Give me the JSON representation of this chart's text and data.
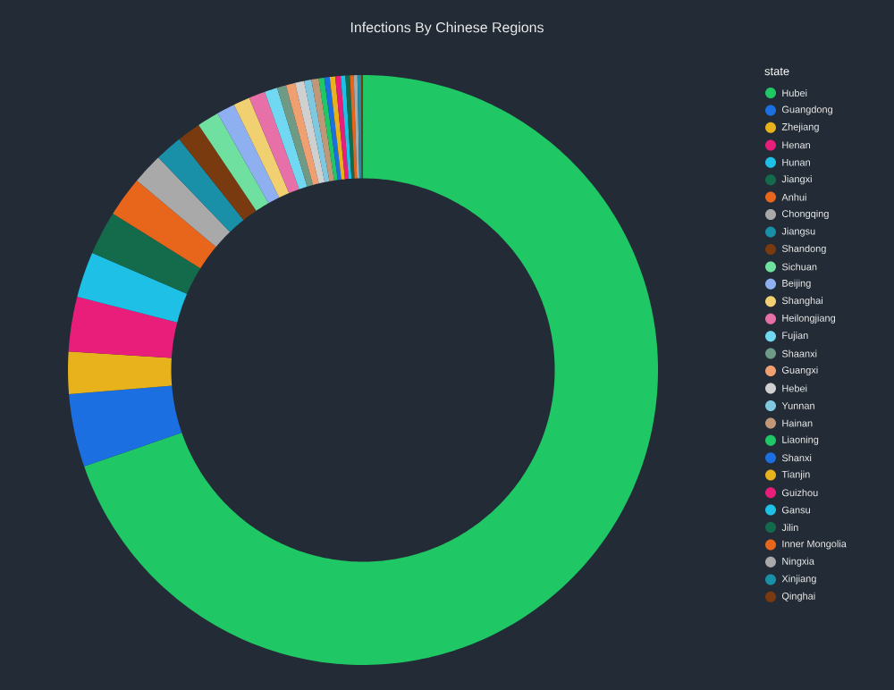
{
  "chart_data": {
    "type": "donut",
    "title": "Infections By Chinese Regions",
    "legend_title": "state",
    "legend": "right",
    "categories": [
      "Hubei",
      "Guangdong",
      "Zhejiang",
      "Henan",
      "Hunan",
      "Jiangxi",
      "Anhui",
      "Chongqing",
      "Jiangsu",
      "Shandong",
      "Sichuan",
      "Beijing",
      "Shanghai",
      "Heilongjiang",
      "Fujian",
      "Shaanxi",
      "Guangxi",
      "Hebei",
      "Yunnan",
      "Hainan",
      "Liaoning",
      "Shanxi",
      "Tianjin",
      "Guizhou",
      "Gansu",
      "Jilin",
      "Inner Mongolia",
      "Ningxia",
      "Xinjiang",
      "Qinghai"
    ],
    "values": [
      69.7,
      4.0,
      2.3,
      3.0,
      2.5,
      2.4,
      2.2,
      1.7,
      1.5,
      1.3,
      1.2,
      1.0,
      0.9,
      0.9,
      0.7,
      0.5,
      0.5,
      0.5,
      0.4,
      0.4,
      0.3,
      0.3,
      0.3,
      0.3,
      0.25,
      0.25,
      0.2,
      0.2,
      0.2,
      0.1
    ],
    "colors": [
      "#1fc864",
      "#1c6fe0",
      "#e8b21c",
      "#e91e7a",
      "#1ec0e6",
      "#136b4b",
      "#e8651c",
      "#a9a9a9",
      "#1a8fa8",
      "#7a3a10",
      "#6fe0a0",
      "#8fb0f0",
      "#f0d070",
      "#e870a8",
      "#70d8f0",
      "#6e9a86",
      "#f0a070",
      "#d0d0d0",
      "#80c8e0",
      "#c09878",
      "#1fc864",
      "#1c6fe0",
      "#e8b21c",
      "#e91e7a",
      "#1ec0e6",
      "#136b4b",
      "#e8651c",
      "#a9a9a9",
      "#1a8fa8",
      "#7a3a10"
    ]
  }
}
